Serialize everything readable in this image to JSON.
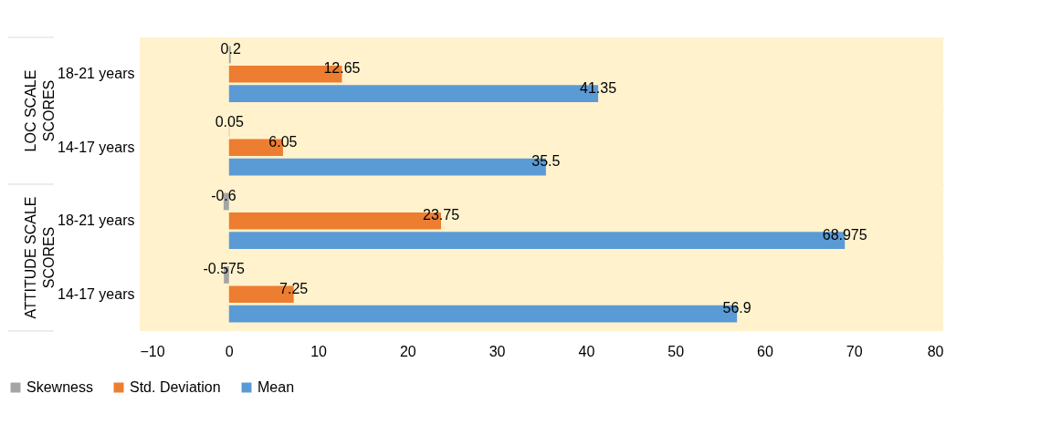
{
  "chart_data": {
    "type": "bar",
    "orientation": "horizontal",
    "categories": [
      "18-21 years",
      "14-17 years",
      "18-21 years",
      "14-17 years"
    ],
    "series": [
      {
        "name": "Skewness",
        "color": "#a5a5a5",
        "values": [
          0.2,
          0.05,
          -0.6,
          -0.575
        ]
      },
      {
        "name": "Std. Deviation",
        "color": "#ed7d31",
        "values": [
          12.65,
          6.05,
          23.75,
          7.25
        ]
      },
      {
        "name": "Mean",
        "color": "#5b9bd5",
        "values": [
          41.35,
          35.5,
          68.975,
          56.9
        ]
      }
    ],
    "xlim": [
      -10,
      80
    ],
    "xticks": [
      -10,
      0,
      10,
      20,
      30,
      40,
      50,
      60,
      70,
      80
    ],
    "annotations": [
      "LOC SCALE SCORES",
      "ATTITUDE SCALE SCORES"
    ],
    "data_labels": true,
    "legend": "bottom"
  }
}
